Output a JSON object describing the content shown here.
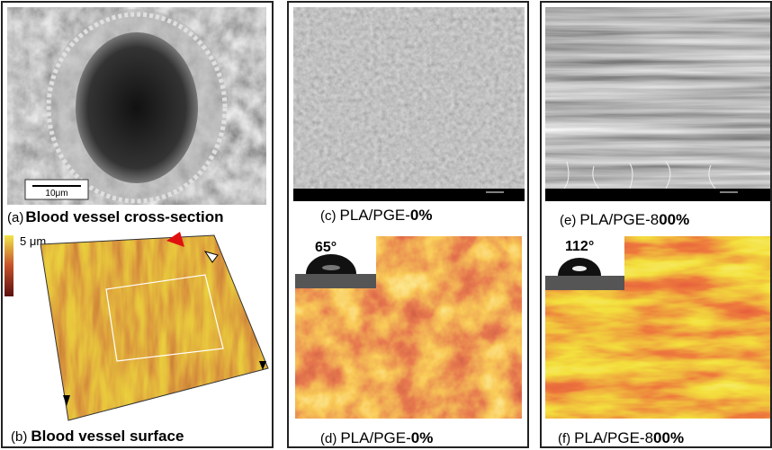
{
  "panels": [
    {
      "label": "(a)",
      "caption": "Blood vessel cross-section",
      "scale_bar": "10μm"
    },
    {
      "label": "(b)",
      "caption": "Blood vessel surface",
      "height_scale": "5 μm"
    },
    {
      "label": "(c)",
      "caption_prefix": "PLA/PGE-",
      "caption_bold": "0%"
    },
    {
      "label": "(d)",
      "caption_prefix": "PLA/PGE-",
      "caption_bold": "0%",
      "contact_angle": "65°"
    },
    {
      "label": "(e)",
      "caption_prefix": "PLA/PGE-8",
      "caption_bold": "00%"
    },
    {
      "label": "(f)",
      "caption_prefix": "PLA/PGE-8",
      "caption_bold": "00%",
      "contact_angle": "112°"
    }
  ]
}
